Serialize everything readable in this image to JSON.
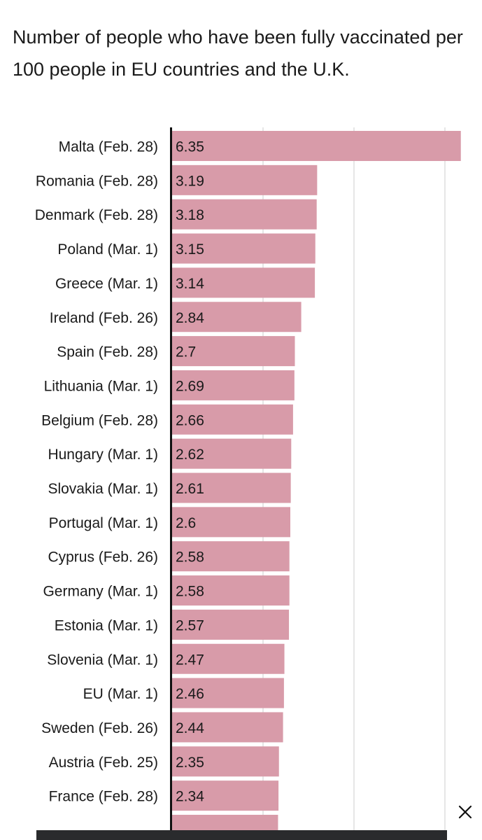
{
  "chart_data": {
    "type": "bar",
    "orientation": "horizontal",
    "title": "Number of people who have been fully vaccinated per 100 people in EU countries and the U.K.",
    "xlabel": "",
    "ylabel": "",
    "xlim": [
      0,
      6.5
    ],
    "grid": true,
    "bar_color": "#d89ba9",
    "categories": [
      "Malta (Feb. 28)",
      "Romania (Feb. 28)",
      "Denmark (Feb. 28)",
      "Poland (Mar. 1)",
      "Greece (Mar. 1)",
      "Ireland (Feb. 26)",
      "Spain (Feb. 28)",
      "Lithuania (Mar. 1)",
      "Belgium (Feb. 28)",
      "Hungary (Mar. 1)",
      "Slovakia (Mar. 1)",
      "Portugal (Mar. 1)",
      "Cyprus (Feb. 26)",
      "Germany (Mar. 1)",
      "Estonia (Mar. 1)",
      "Slovenia (Mar. 1)",
      "EU (Mar. 1)",
      "Sweden (Feb. 26)",
      "Austria (Feb. 25)",
      "France (Feb. 28)"
    ],
    "values": [
      6.35,
      3.19,
      3.18,
      3.15,
      3.14,
      2.84,
      2.7,
      2.69,
      2.66,
      2.62,
      2.61,
      2.6,
      2.58,
      2.58,
      2.57,
      2.47,
      2.46,
      2.44,
      2.35,
      2.34
    ],
    "value_labels": [
      "6.35",
      "3.19",
      "3.18",
      "3.15",
      "3.14",
      "2.84",
      "2.7",
      "2.69",
      "2.66",
      "2.62",
      "2.61",
      "2.6",
      "2.58",
      "2.58",
      "2.57",
      "2.47",
      "2.46",
      "2.44",
      "2.35",
      "2.34"
    ],
    "partial_next_value": 2.33
  },
  "ui": {
    "close_icon": "close-icon"
  }
}
